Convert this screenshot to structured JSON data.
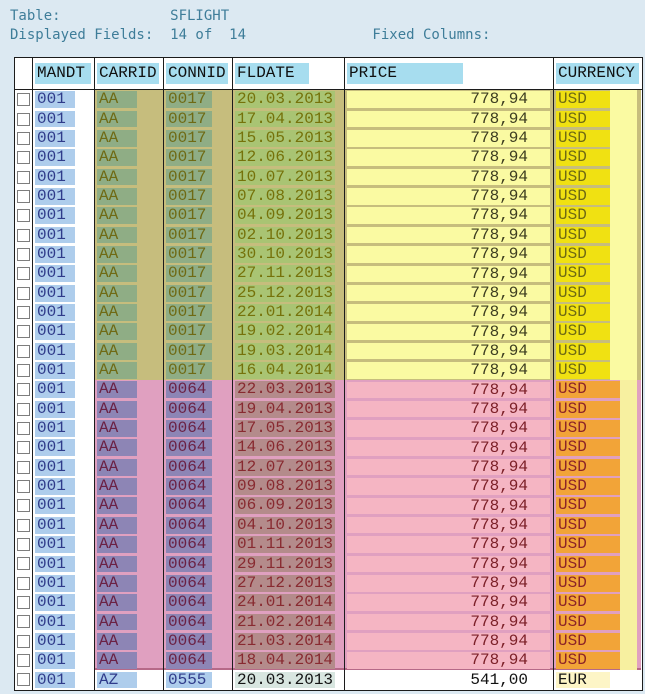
{
  "header": {
    "line1": "Table:             SFLIGHT",
    "line2": "Displayed Fields:  14 of  14               Fixed Columns:",
    "table_name": "SFLIGHT",
    "displayed_fields": "14 of 14"
  },
  "table": {
    "columns": [
      "",
      "MANDT",
      "CARRID",
      "CONNID",
      "FLDATE",
      "PRICE",
      "CURRENCY"
    ],
    "groups": [
      {
        "style": "g1",
        "mandt": "001",
        "carrid": "AA",
        "connid": "0017",
        "price": "778,94",
        "currency": "USD",
        "dates": [
          "20.03.2013",
          "17.04.2013",
          "15.05.2013",
          "12.06.2013",
          "10.07.2013",
          "07.08.2013",
          "04.09.2013",
          "02.10.2013",
          "30.10.2013",
          "27.11.2013",
          "25.12.2013",
          "22.01.2014",
          "19.02.2014",
          "19.03.2014",
          "16.04.2014"
        ]
      },
      {
        "style": "g2",
        "mandt": "001",
        "carrid": "AA",
        "connid": "0064",
        "price": "778,94",
        "currency": "USD",
        "dates": [
          "22.03.2013",
          "19.04.2013",
          "17.05.2013",
          "14.06.2013",
          "12.07.2013",
          "09.08.2013",
          "06.09.2013",
          "04.10.2013",
          "01.11.2013",
          "29.11.2013",
          "27.12.2013",
          "24.01.2014",
          "21.02.2014",
          "21.03.2014",
          "18.04.2014"
        ]
      },
      {
        "style": "base",
        "mandt": "001",
        "carrid": "AZ",
        "connid": "0555",
        "price": "541,00",
        "currency": "EUR",
        "dates": [
          "20.03.2013"
        ]
      }
    ]
  },
  "colors": {
    "page_background": "#dce9f2",
    "header_text": "#3e7d99",
    "column_header_box": "#a7ddef",
    "key_field_box_blue": "#aecdec",
    "group1_overlay_olive": "#c6bd7d",
    "group1_price_yellow": "#fafaa2",
    "group1_currency_yellow": "#f0e112",
    "group2_overlay_pink": "#e0a0c0",
    "group2_price_pink": "#f5b5c3",
    "group2_currency_orange": "#f2a438"
  }
}
